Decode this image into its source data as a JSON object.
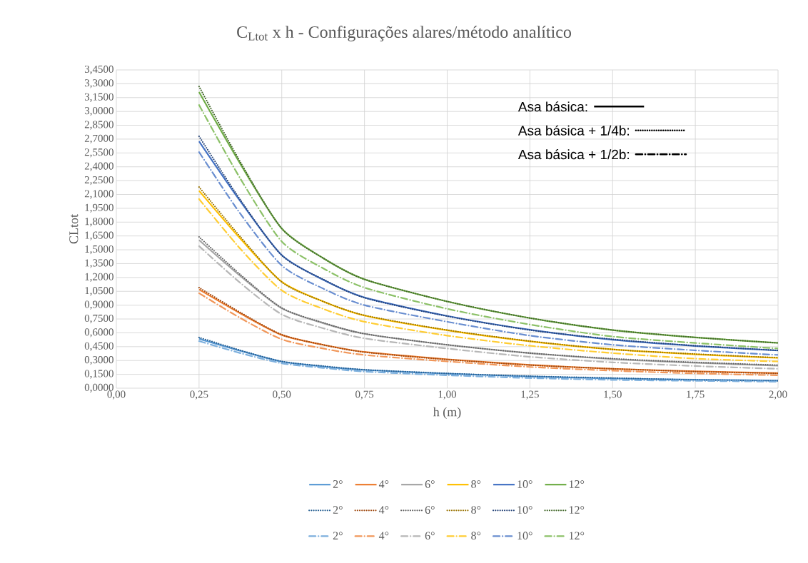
{
  "chart_data": {
    "type": "line",
    "title": "C$_{Ltot}$ x h - Configurações alares/método analítico",
    "xlabel": "h (m)",
    "ylabel": "CLtot",
    "x": [
      0.25,
      0.375,
      0.5,
      0.625,
      0.75,
      1.0,
      1.25,
      1.5,
      1.75,
      2.0
    ],
    "xlim": [
      0,
      2
    ],
    "ylim": [
      0,
      3.45
    ],
    "xticks": [
      {
        "value": 0,
        "label": "0,00"
      },
      {
        "value": 0.25,
        "label": "0,25"
      },
      {
        "value": 0.5,
        "label": "0,50"
      },
      {
        "value": 0.75,
        "label": "0,75"
      },
      {
        "value": 1,
        "label": "1,00"
      },
      {
        "value": 1.25,
        "label": "1,25"
      },
      {
        "value": 1.5,
        "label": "1,50"
      },
      {
        "value": 1.75,
        "label": "1,75"
      },
      {
        "value": 2,
        "label": "2,00"
      }
    ],
    "yticks": [
      {
        "value": 0,
        "label": "0,0000"
      },
      {
        "value": 0.15,
        "label": "0,1500"
      },
      {
        "value": 0.3,
        "label": "0,3000"
      },
      {
        "value": 0.45,
        "label": "0,4500"
      },
      {
        "value": 0.6,
        "label": "0,6000"
      },
      {
        "value": 0.75,
        "label": "0,7500"
      },
      {
        "value": 0.9,
        "label": "0,9000"
      },
      {
        "value": 1.05,
        "label": "1,0500"
      },
      {
        "value": 1.2,
        "label": "1,2000"
      },
      {
        "value": 1.35,
        "label": "1,3500"
      },
      {
        "value": 1.5,
        "label": "1,5000"
      },
      {
        "value": 1.65,
        "label": "1,6500"
      },
      {
        "value": 1.8,
        "label": "1,8000"
      },
      {
        "value": 1.95,
        "label": "1,9500"
      },
      {
        "value": 2.1,
        "label": "2,1000"
      },
      {
        "value": 2.25,
        "label": "2,2500"
      },
      {
        "value": 2.4,
        "label": "2,4000"
      },
      {
        "value": 2.55,
        "label": "2,5500"
      },
      {
        "value": 2.7,
        "label": "2,7000"
      },
      {
        "value": 2.85,
        "label": "2,8500"
      },
      {
        "value": 3.0,
        "label": "3,0000"
      },
      {
        "value": 3.15,
        "label": "3,1500"
      },
      {
        "value": 3.3,
        "label": "3,3000"
      },
      {
        "value": 3.45,
        "label": "3,4500"
      }
    ],
    "grid": true,
    "legend": "bottom",
    "annotations": [
      "Asa básica:",
      "Asa básica + 1/4b:",
      "Asa básica + 1/2b:"
    ],
    "series": [
      {
        "name": "2°",
        "color": "#5b9bd5",
        "line_style": "solid",
        "values": [
          0.535,
          0.405,
          0.288,
          0.235,
          0.197,
          0.157,
          0.127,
          0.105,
          0.092,
          0.082
        ]
      },
      {
        "name": "4°",
        "color": "#ed7d31",
        "line_style": "solid",
        "values": [
          1.07,
          0.81,
          0.577,
          0.47,
          0.393,
          0.313,
          0.253,
          0.21,
          0.183,
          0.163
        ]
      },
      {
        "name": "6°",
        "color": "#a5a5a5",
        "line_style": "solid",
        "values": [
          1.605,
          1.215,
          0.865,
          0.705,
          0.59,
          0.47,
          0.38,
          0.315,
          0.275,
          0.245
        ]
      },
      {
        "name": "8°",
        "color": "#ffc000",
        "line_style": "solid",
        "values": [
          2.14,
          1.62,
          1.153,
          0.94,
          0.787,
          0.627,
          0.507,
          0.42,
          0.367,
          0.327
        ]
      },
      {
        "name": "10°",
        "color": "#4472c4",
        "line_style": "solid",
        "values": [
          2.675,
          2.025,
          1.442,
          1.175,
          0.983,
          0.783,
          0.633,
          0.525,
          0.458,
          0.408
        ]
      },
      {
        "name": "12°",
        "color": "#70ad47",
        "line_style": "solid",
        "values": [
          3.21,
          2.43,
          1.73,
          1.41,
          1.18,
          0.94,
          0.76,
          0.63,
          0.55,
          0.49
        ]
      },
      {
        "name": "2°",
        "color": "#255e91",
        "line_style": "dotted",
        "values": [
          0.55,
          0.41,
          0.29,
          0.24,
          0.2,
          0.16,
          0.13,
          0.11,
          0.09,
          0.08
        ]
      },
      {
        "name": "4°",
        "color": "#9e480e",
        "line_style": "dotted",
        "values": [
          1.09,
          0.82,
          0.58,
          0.47,
          0.39,
          0.31,
          0.25,
          0.21,
          0.18,
          0.16
        ]
      },
      {
        "name": "6°",
        "color": "#636363",
        "line_style": "dotted",
        "values": [
          1.64,
          1.23,
          0.87,
          0.71,
          0.59,
          0.47,
          0.38,
          0.32,
          0.28,
          0.25
        ]
      },
      {
        "name": "8°",
        "color": "#997300",
        "line_style": "dotted",
        "values": [
          2.18,
          1.64,
          1.15,
          0.94,
          0.79,
          0.63,
          0.51,
          0.42,
          0.37,
          0.33
        ]
      },
      {
        "name": "10°",
        "color": "#264478",
        "line_style": "dotted",
        "values": [
          2.73,
          2.04,
          1.44,
          1.18,
          0.98,
          0.78,
          0.63,
          0.53,
          0.46,
          0.41
        ]
      },
      {
        "name": "12°",
        "color": "#43682b",
        "line_style": "dotted",
        "values": [
          3.27,
          2.45,
          1.73,
          1.41,
          1.18,
          0.94,
          0.76,
          0.63,
          0.55,
          0.49
        ]
      },
      {
        "name": "2°",
        "color": "#7cafdd",
        "line_style": "dashdot",
        "values": [
          0.51,
          0.38,
          0.27,
          0.22,
          0.18,
          0.14,
          0.11,
          0.09,
          0.08,
          0.07
        ]
      },
      {
        "name": "4°",
        "color": "#f1975a",
        "line_style": "dashdot",
        "values": [
          1.03,
          0.76,
          0.53,
          0.43,
          0.36,
          0.29,
          0.23,
          0.19,
          0.16,
          0.14
        ]
      },
      {
        "name": "6°",
        "color": "#b7b7b7",
        "line_style": "dashdot",
        "values": [
          1.54,
          1.14,
          0.8,
          0.65,
          0.54,
          0.43,
          0.34,
          0.28,
          0.24,
          0.21
        ]
      },
      {
        "name": "8°",
        "color": "#ffcd33",
        "line_style": "dashdot",
        "values": [
          2.05,
          1.51,
          1.06,
          0.86,
          0.72,
          0.57,
          0.46,
          0.38,
          0.32,
          0.29
        ]
      },
      {
        "name": "10°",
        "color": "#698ed0",
        "line_style": "dashdot",
        "values": [
          2.56,
          1.89,
          1.33,
          1.08,
          0.9,
          0.72,
          0.57,
          0.47,
          0.41,
          0.36
        ]
      },
      {
        "name": "12°",
        "color": "#8cc168",
        "line_style": "dashdot",
        "values": [
          3.07,
          2.27,
          1.59,
          1.3,
          1.09,
          0.86,
          0.69,
          0.56,
          0.49,
          0.43
        ]
      }
    ]
  }
}
